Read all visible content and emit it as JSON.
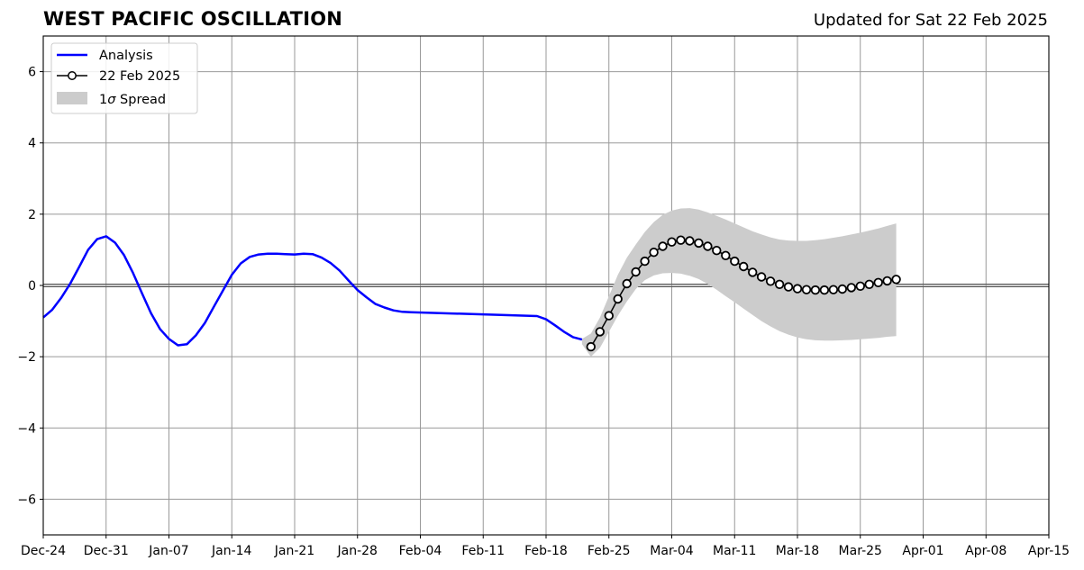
{
  "chart_data": {
    "type": "line",
    "title": "WEST PACIFIC OSCILLATION",
    "subtitle": "Updated for Sat 22 Feb 2025",
    "x_tick_labels": [
      "Dec-24",
      "Dec-31",
      "Jan-07",
      "Jan-14",
      "Jan-21",
      "Jan-28",
      "Feb-04",
      "Feb-11",
      "Feb-18",
      "Feb-25",
      "Mar-04",
      "Mar-11",
      "Mar-18",
      "Mar-25",
      "Apr-01",
      "Apr-08",
      "Apr-15"
    ],
    "y_ticks": [
      -6,
      -4,
      -2,
      0,
      2,
      4,
      6
    ],
    "y_tick_labels": [
      "−6",
      "−4",
      "−2",
      "0",
      "2",
      "4",
      "6"
    ],
    "xlim": [
      "2024-12-24",
      "2025-04-15"
    ],
    "ylim": [
      -7,
      7
    ],
    "grid": true,
    "zero_line": true,
    "legend_position": "top-left",
    "legend": {
      "analysis": "Analysis",
      "forecast": "22 Feb 2025",
      "spread_prefix": "1",
      "spread_sigma": "σ",
      "spread_suffix": " Spread"
    },
    "colors": {
      "analysis": "#0000ff",
      "forecast_line": "#000000",
      "forecast_marker_fill": "#ffffff",
      "spread": "#cccccc",
      "grid": "#999999"
    },
    "series": [
      {
        "name": "Analysis",
        "dates": [
          "2024-12-24",
          "2024-12-25",
          "2024-12-26",
          "2024-12-27",
          "2024-12-28",
          "2024-12-29",
          "2024-12-30",
          "2024-12-31",
          "2025-01-01",
          "2025-01-02",
          "2025-01-03",
          "2025-01-04",
          "2025-01-05",
          "2025-01-06",
          "2025-01-07",
          "2025-01-08",
          "2025-01-09",
          "2025-01-10",
          "2025-01-11",
          "2025-01-12",
          "2025-01-13",
          "2025-01-14",
          "2025-01-15",
          "2025-01-16",
          "2025-01-17",
          "2025-01-18",
          "2025-01-19",
          "2025-01-20",
          "2025-01-21",
          "2025-01-22",
          "2025-01-23",
          "2025-01-24",
          "2025-01-25",
          "2025-01-26",
          "2025-01-27",
          "2025-01-28",
          "2025-01-29",
          "2025-01-30",
          "2025-01-31",
          "2025-02-01",
          "2025-02-02",
          "2025-02-03",
          "2025-02-17",
          "2025-02-18",
          "2025-02-19",
          "2025-02-20",
          "2025-02-21",
          "2025-02-22"
        ],
        "values": [
          -0.9,
          -0.68,
          -0.35,
          0.05,
          0.52,
          1.0,
          1.3,
          1.38,
          1.2,
          0.85,
          0.35,
          -0.22,
          -0.78,
          -1.22,
          -1.5,
          -1.68,
          -1.65,
          -1.4,
          -1.05,
          -0.6,
          -0.15,
          0.3,
          0.62,
          0.8,
          0.87,
          0.89,
          0.89,
          0.88,
          0.87,
          0.89,
          0.88,
          0.78,
          0.63,
          0.42,
          0.14,
          -0.13,
          -0.33,
          -0.52,
          -0.62,
          -0.7,
          -0.74,
          -0.75,
          -0.86,
          -0.95,
          -1.12,
          -1.3,
          -1.45,
          -1.52
        ]
      },
      {
        "name": "22 Feb 2025",
        "dates": [
          "2025-02-23",
          "2025-02-24",
          "2025-02-25",
          "2025-02-26",
          "2025-02-27",
          "2025-02-28",
          "2025-03-01",
          "2025-03-02",
          "2025-03-03",
          "2025-03-04",
          "2025-03-05",
          "2025-03-06",
          "2025-03-07",
          "2025-03-08",
          "2025-03-09",
          "2025-03-10",
          "2025-03-11",
          "2025-03-12",
          "2025-03-13",
          "2025-03-14",
          "2025-03-15",
          "2025-03-16",
          "2025-03-17",
          "2025-03-18",
          "2025-03-19",
          "2025-03-20",
          "2025-03-21",
          "2025-03-22",
          "2025-03-23",
          "2025-03-24",
          "2025-03-25",
          "2025-03-26",
          "2025-03-27",
          "2025-03-28",
          "2025-03-29"
        ],
        "values": [
          -1.72,
          -1.3,
          -0.85,
          -0.38,
          0.05,
          0.38,
          0.68,
          0.93,
          1.1,
          1.22,
          1.27,
          1.25,
          1.19,
          1.1,
          0.98,
          0.84,
          0.68,
          0.53,
          0.37,
          0.24,
          0.12,
          0.03,
          -0.04,
          -0.09,
          -0.12,
          -0.13,
          -0.13,
          -0.12,
          -0.1,
          -0.06,
          -0.02,
          0.03,
          0.08,
          0.13,
          0.17
        ]
      }
    ],
    "spread": {
      "name": "1σ Spread",
      "dates": [
        "2025-02-22",
        "2025-02-23",
        "2025-02-24",
        "2025-02-25",
        "2025-02-26",
        "2025-02-27",
        "2025-02-28",
        "2025-03-01",
        "2025-03-02",
        "2025-03-03",
        "2025-03-04",
        "2025-03-05",
        "2025-03-06",
        "2025-03-07",
        "2025-03-08",
        "2025-03-09",
        "2025-03-10",
        "2025-03-11",
        "2025-03-12",
        "2025-03-13",
        "2025-03-14",
        "2025-03-15",
        "2025-03-16",
        "2025-03-17",
        "2025-03-18",
        "2025-03-19",
        "2025-03-20",
        "2025-03-21",
        "2025-03-22",
        "2025-03-23",
        "2025-03-24",
        "2025-03-25",
        "2025-03-26",
        "2025-03-27",
        "2025-03-28",
        "2025-03-29"
      ],
      "upper": [
        -1.5,
        -1.35,
        -0.9,
        -0.3,
        0.3,
        0.78,
        1.15,
        1.5,
        1.78,
        1.98,
        2.1,
        2.16,
        2.17,
        2.13,
        2.05,
        1.95,
        1.85,
        1.74,
        1.63,
        1.52,
        1.43,
        1.35,
        1.29,
        1.26,
        1.25,
        1.25,
        1.27,
        1.3,
        1.34,
        1.38,
        1.43,
        1.48,
        1.54,
        1.6,
        1.67,
        1.74
      ],
      "lower": [
        -1.65,
        -2.0,
        -1.75,
        -1.3,
        -0.85,
        -0.45,
        -0.1,
        0.15,
        0.28,
        0.34,
        0.35,
        0.33,
        0.27,
        0.18,
        0.04,
        -0.12,
        -0.3,
        -0.47,
        -0.65,
        -0.83,
        -1.0,
        -1.15,
        -1.28,
        -1.38,
        -1.46,
        -1.51,
        -1.54,
        -1.55,
        -1.55,
        -1.54,
        -1.53,
        -1.51,
        -1.49,
        -1.47,
        -1.44,
        -1.42
      ]
    }
  }
}
